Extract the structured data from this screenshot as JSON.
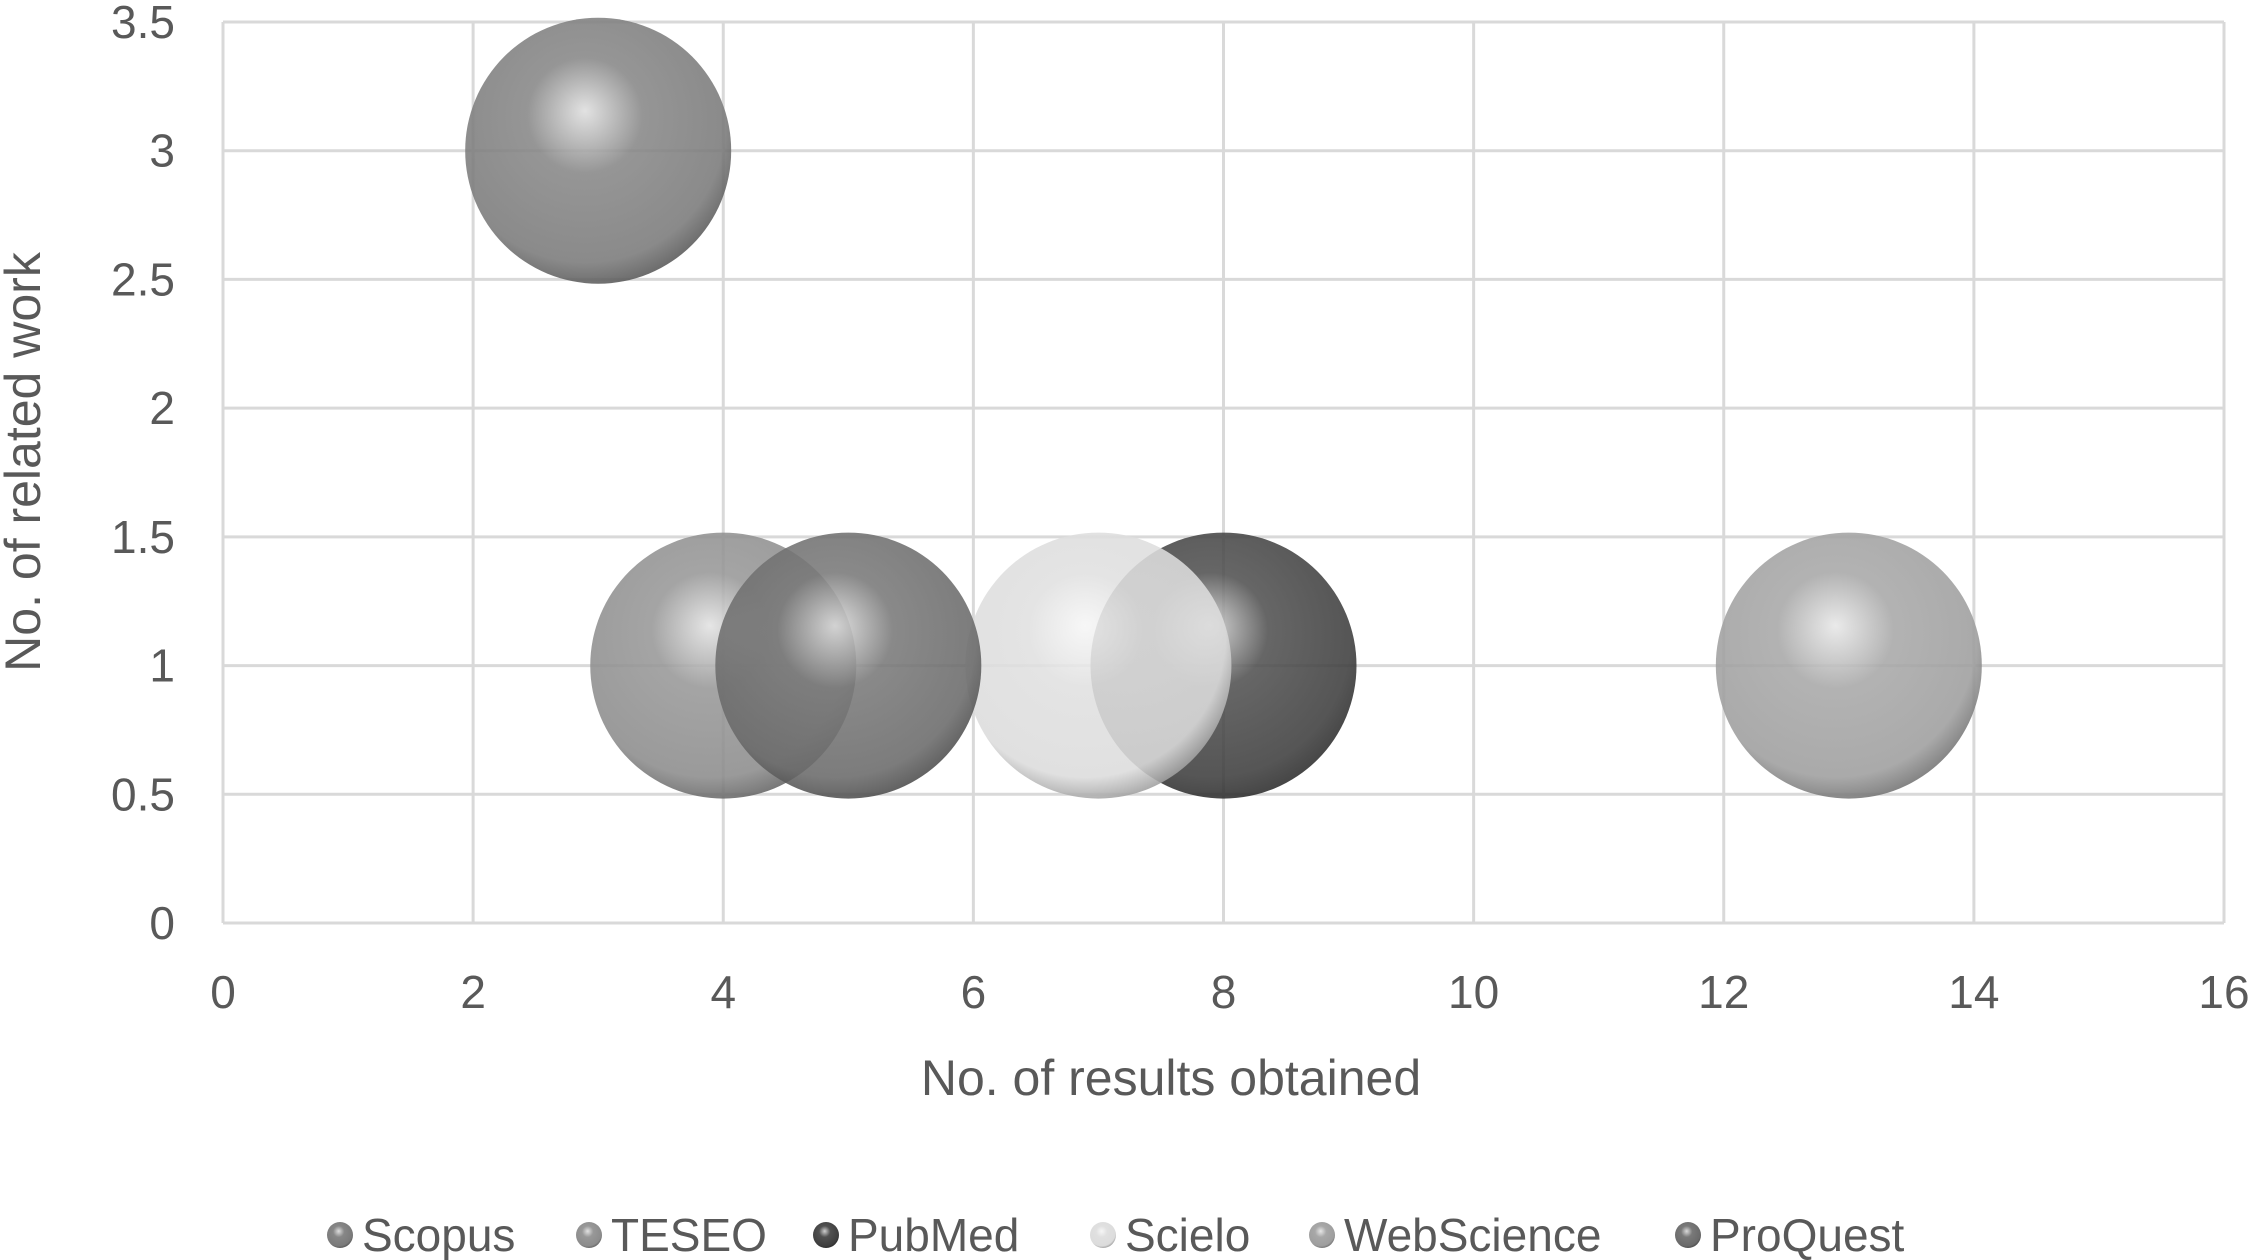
{
  "chart_data": {
    "type": "scatter",
    "subtype": "bubble",
    "title": "",
    "xlabel": "No. of results obtained",
    "ylabel": "No. of related work",
    "xlim": [
      0,
      16
    ],
    "ylim": [
      0,
      3.5
    ],
    "xticks": [
      "0",
      "2",
      "4",
      "6",
      "8",
      "10",
      "12",
      "14",
      "16"
    ],
    "yticks": [
      "0",
      "0.5",
      "1",
      "1.5",
      "2",
      "2.5",
      "3",
      "3.5"
    ],
    "grid": true,
    "legend_position": "bottom",
    "series": [
      {
        "name": "Scopus",
        "x": 3,
        "y": 3,
        "color": "#7a7a7a"
      },
      {
        "name": "TESEO",
        "x": 4,
        "y": 1,
        "color": "#8c8c8c"
      },
      {
        "name": "PubMed",
        "x": 8,
        "y": 1,
        "color": "#3e3e3e"
      },
      {
        "name": "Scielo",
        "x": 7,
        "y": 1,
        "color": "#dcdcdc"
      },
      {
        "name": "WebScience",
        "x": 13,
        "y": 1,
        "color": "#9e9e9e"
      },
      {
        "name": "ProQuest",
        "x": 5,
        "y": 1,
        "color": "#6a6a6a"
      }
    ]
  }
}
